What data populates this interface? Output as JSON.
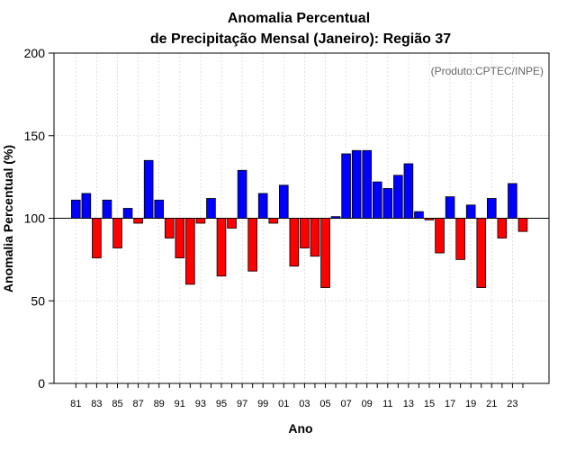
{
  "colors": {
    "positive": "#0000ff",
    "negative": "#ff0000",
    "border": "#000000",
    "credit": "#666666"
  },
  "chart_data": {
    "type": "bar",
    "title_line1": "Anomalia Percentual",
    "title_line2": "de Precipitação Mensal (Janeiro): Região 37",
    "xlabel": "Ano",
    "ylabel": "Anomalia Percentual (%)",
    "credit": "(Produto:CPTEC/INPE)",
    "ylim": [
      0,
      200
    ],
    "baseline": 100,
    "yticks": [
      0,
      50,
      100,
      150,
      200
    ],
    "categories": [
      "81",
      "82",
      "83",
      "84",
      "85",
      "86",
      "87",
      "88",
      "89",
      "90",
      "91",
      "92",
      "93",
      "94",
      "95",
      "96",
      "97",
      "98",
      "99",
      "00",
      "01",
      "02",
      "03",
      "04",
      "05",
      "06",
      "07",
      "08",
      "09",
      "10",
      "11",
      "12",
      "13",
      "14",
      "15",
      "16",
      "17",
      "18",
      "19",
      "20",
      "21",
      "22",
      "23",
      "24"
    ],
    "tick_labels": [
      "81",
      "83",
      "85",
      "87",
      "89",
      "91",
      "93",
      "95",
      "97",
      "99",
      "01",
      "03",
      "05",
      "07",
      "09",
      "11",
      "13",
      "15",
      "17",
      "19",
      "21",
      "23"
    ],
    "values": [
      111,
      115,
      76,
      111,
      82,
      106,
      97,
      135,
      111,
      88,
      76,
      60,
      97,
      112,
      65,
      94,
      129,
      68,
      115,
      97,
      120,
      71,
      82,
      77,
      58,
      101,
      139,
      141,
      141,
      122,
      118,
      126,
      133,
      104,
      99,
      79,
      113,
      75,
      108,
      58,
      112,
      88,
      121,
      92
    ],
    "grid": true
  }
}
